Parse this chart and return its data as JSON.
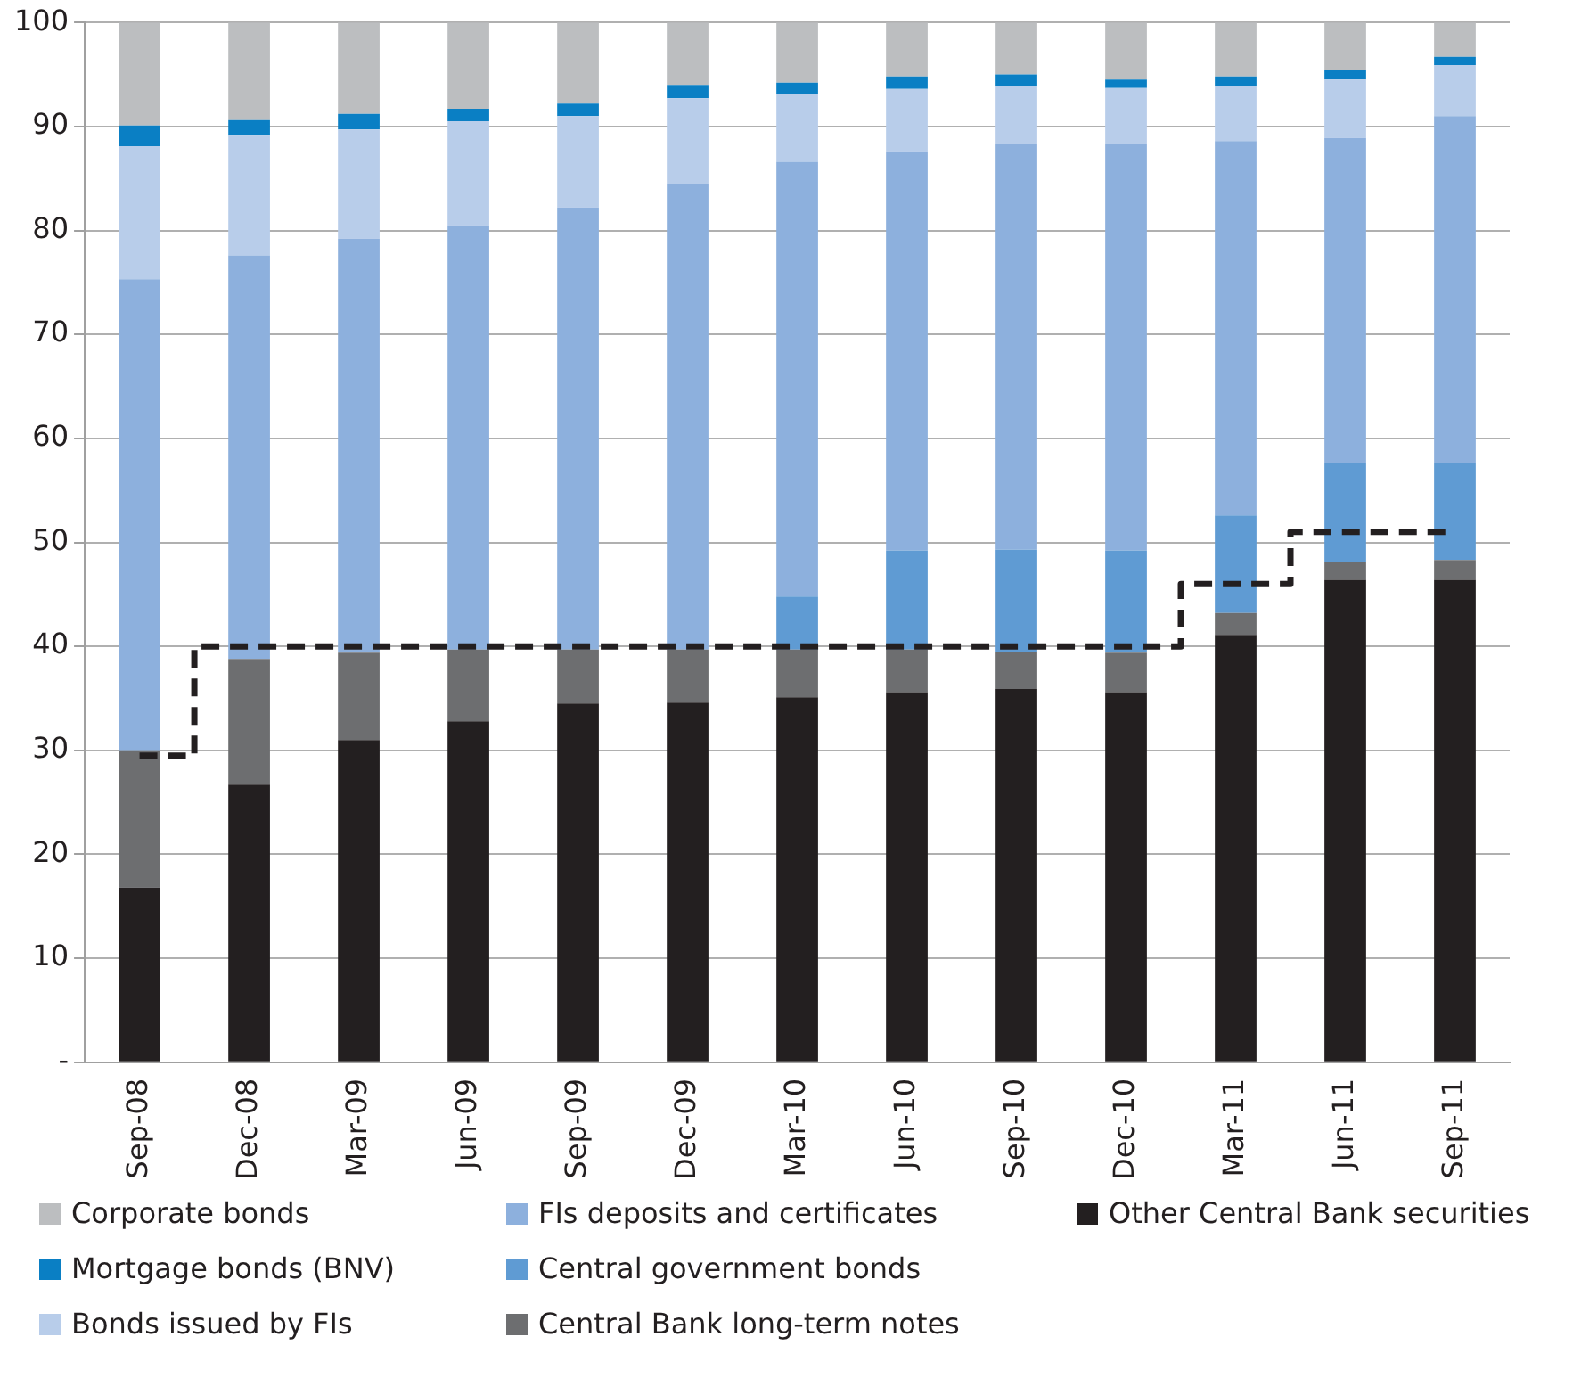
{
  "chart_data": {
    "type": "bar",
    "stacked": true,
    "grid": "y",
    "legend": "bottom",
    "categories": [
      "Sep-08",
      "Dec-08",
      "Mar-09",
      "Jun-09",
      "Sep-09",
      "Dec-09",
      "Mar-10",
      "Jun-10",
      "Sep-10",
      "Dec-10",
      "Mar-11",
      "Jun-11",
      "Sep-11"
    ],
    "ylim": [
      0,
      100
    ],
    "yticks": [
      {
        "value": 0,
        "label": "-"
      },
      10,
      20,
      30,
      40,
      50,
      60,
      70,
      80,
      90,
      100
    ],
    "series": [
      {
        "name": "Other Central Bank securities",
        "color": "#231f20",
        "values": [
          16.8,
          26.7,
          31.0,
          32.8,
          34.5,
          34.6,
          35.1,
          35.6,
          35.9,
          35.6,
          41.1,
          46.4,
          46.4
        ]
      },
      {
        "name": "Central Bank long-term notes",
        "color": "#6d6e70",
        "values": [
          13.2,
          12.1,
          8.4,
          6.9,
          5.2,
          5.1,
          4.6,
          4.1,
          3.6,
          3.8,
          2.1,
          1.7,
          1.9
        ]
      },
      {
        "name": "Central government bonds",
        "color": "#5f9bd3",
        "values": [
          0,
          0,
          0,
          0,
          0,
          0,
          5.1,
          9.5,
          9.8,
          9.8,
          9.4,
          9.5,
          9.3
        ]
      },
      {
        "name": "FIs deposits and certificates",
        "color": "#8db0dd",
        "values": [
          45.3,
          38.8,
          39.8,
          40.8,
          42.5,
          44.8,
          41.8,
          38.4,
          39.0,
          39.1,
          36.0,
          31.3,
          33.4
        ]
      },
      {
        "name": "Bonds issued by FIs",
        "color": "#b8cdea",
        "values": [
          12.8,
          11.5,
          10.5,
          10.0,
          8.8,
          8.2,
          6.5,
          6.0,
          5.6,
          5.4,
          5.3,
          5.6,
          4.9
        ]
      },
      {
        "name": "Mortgage bonds (BNV)",
        "color": "#0a7fc4",
        "values": [
          2.0,
          1.5,
          1.5,
          1.2,
          1.2,
          1.3,
          1.1,
          1.2,
          1.1,
          0.8,
          0.9,
          0.9,
          0.8
        ]
      },
      {
        "name": "Corporate bonds",
        "color": "#bcbec0",
        "values": [
          9.9,
          9.4,
          8.8,
          8.3,
          7.8,
          6.0,
          5.8,
          5.2,
          5.0,
          5.5,
          5.2,
          4.6,
          3.3
        ]
      },
      {
        "type": "step",
        "color": "#231f20",
        "line_style": "dashed",
        "marker": "none",
        "values": [
          29.5,
          40,
          40,
          40,
          40,
          40,
          40,
          40,
          40,
          40,
          46,
          51,
          51
        ]
      }
    ]
  }
}
